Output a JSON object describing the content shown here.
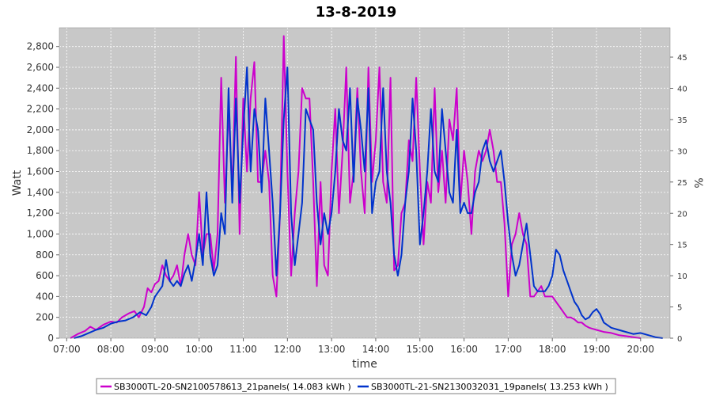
{
  "chart_data": {
    "type": "line",
    "title": "13-8-2019",
    "xlabel": "time",
    "ylabel": "Watt",
    "y2label": "%",
    "x_ticks": [
      "07:00",
      "08:00",
      "09:00",
      "10:00",
      "11:00",
      "12:00",
      "13:00",
      "14:00",
      "15:00",
      "16:00",
      "17:00",
      "18:00",
      "19:00",
      "20:00"
    ],
    "x_range": [
      "06:50",
      "20:40"
    ],
    "ylim": [
      0,
      2980
    ],
    "y_ticks": [
      "0",
      "200",
      "400",
      "600",
      "800",
      "1,000",
      "1,200",
      "1,400",
      "1,600",
      "1,800",
      "2,000",
      "2,200",
      "2,400",
      "2,600",
      "2,800"
    ],
    "y2lim": [
      0,
      49.7
    ],
    "y2_ticks": [
      "0",
      "5",
      "10",
      "15",
      "20",
      "25",
      "30",
      "35",
      "40",
      "45"
    ],
    "grid": true,
    "legend_position": "bottom",
    "colors": {
      "plot_background": "#c8c8c8",
      "grid": "#ffffff"
    },
    "series": [
      {
        "name": "SB3000TL-20-SN2100578613_21panels( 14.083 kWh )",
        "color": "#cc00cc",
        "points": [
          [
            "07:05",
            0
          ],
          [
            "07:15",
            40
          ],
          [
            "07:25",
            70
          ],
          [
            "07:32",
            110
          ],
          [
            "07:40",
            80
          ],
          [
            "07:50",
            130
          ],
          [
            "08:00",
            160
          ],
          [
            "08:08",
            150
          ],
          [
            "08:15",
            200
          ],
          [
            "08:25",
            240
          ],
          [
            "08:32",
            260
          ],
          [
            "08:38",
            200
          ],
          [
            "08:45",
            300
          ],
          [
            "08:50",
            480
          ],
          [
            "08:55",
            440
          ],
          [
            "09:00",
            520
          ],
          [
            "09:05",
            550
          ],
          [
            "09:10",
            700
          ],
          [
            "09:15",
            600
          ],
          [
            "09:20",
            550
          ],
          [
            "09:25",
            600
          ],
          [
            "09:30",
            700
          ],
          [
            "09:35",
            500
          ],
          [
            "09:40",
            800
          ],
          [
            "09:45",
            1000
          ],
          [
            "09:50",
            800
          ],
          [
            "09:55",
            700
          ],
          [
            "10:00",
            1400
          ],
          [
            "10:05",
            800
          ],
          [
            "10:10",
            1000
          ],
          [
            "10:15",
            1000
          ],
          [
            "10:20",
            650
          ],
          [
            "10:25",
            1000
          ],
          [
            "10:30",
            2500
          ],
          [
            "10:35",
            1300
          ],
          [
            "10:40",
            2200
          ],
          [
            "10:45",
            1400
          ],
          [
            "10:50",
            2700
          ],
          [
            "10:55",
            1000
          ],
          [
            "11:00",
            2300
          ],
          [
            "11:05",
            1600
          ],
          [
            "11:10",
            2300
          ],
          [
            "11:15",
            2650
          ],
          [
            "11:20",
            1500
          ],
          [
            "11:25",
            1500
          ],
          [
            "11:30",
            1800
          ],
          [
            "11:35",
            1500
          ],
          [
            "11:40",
            600
          ],
          [
            "11:45",
            400
          ],
          [
            "11:50",
            1200
          ],
          [
            "11:55",
            2900
          ],
          [
            "12:00",
            1600
          ],
          [
            "12:05",
            600
          ],
          [
            "12:10",
            1200
          ],
          [
            "12:15",
            1600
          ],
          [
            "12:20",
            2400
          ],
          [
            "12:25",
            2300
          ],
          [
            "12:30",
            2300
          ],
          [
            "12:35",
            1500
          ],
          [
            "12:40",
            500
          ],
          [
            "12:45",
            1500
          ],
          [
            "12:50",
            700
          ],
          [
            "12:55",
            600
          ],
          [
            "13:00",
            1600
          ],
          [
            "13:05",
            2200
          ],
          [
            "13:10",
            1200
          ],
          [
            "13:15",
            1800
          ],
          [
            "13:20",
            2600
          ],
          [
            "13:25",
            1300
          ],
          [
            "13:30",
            1600
          ],
          [
            "13:35",
            2400
          ],
          [
            "13:40",
            1600
          ],
          [
            "13:45",
            1200
          ],
          [
            "13:50",
            2600
          ],
          [
            "13:55",
            1500
          ],
          [
            "14:00",
            1900
          ],
          [
            "14:05",
            2600
          ],
          [
            "14:10",
            1500
          ],
          [
            "14:15",
            1300
          ],
          [
            "14:20",
            2500
          ],
          [
            "14:25",
            650
          ],
          [
            "14:30",
            700
          ],
          [
            "14:35",
            1200
          ],
          [
            "14:40",
            1300
          ],
          [
            "14:45",
            1900
          ],
          [
            "14:50",
            1700
          ],
          [
            "14:55",
            2500
          ],
          [
            "15:00",
            1600
          ],
          [
            "15:05",
            900
          ],
          [
            "15:10",
            1500
          ],
          [
            "15:15",
            1300
          ],
          [
            "15:20",
            2400
          ],
          [
            "15:25",
            1400
          ],
          [
            "15:30",
            1800
          ],
          [
            "15:35",
            1300
          ],
          [
            "15:40",
            2100
          ],
          [
            "15:45",
            1900
          ],
          [
            "15:50",
            2400
          ],
          [
            "15:55",
            1300
          ],
          [
            "16:00",
            1800
          ],
          [
            "16:05",
            1500
          ],
          [
            "16:10",
            1000
          ],
          [
            "16:15",
            1600
          ],
          [
            "16:20",
            1800
          ],
          [
            "16:25",
            1700
          ],
          [
            "16:30",
            1800
          ],
          [
            "16:35",
            2000
          ],
          [
            "16:40",
            1800
          ],
          [
            "16:45",
            1500
          ],
          [
            "16:50",
            1500
          ],
          [
            "16:55",
            1100
          ],
          [
            "17:00",
            400
          ],
          [
            "17:05",
            900
          ],
          [
            "17:10",
            1000
          ],
          [
            "17:15",
            1200
          ],
          [
            "17:20",
            1000
          ],
          [
            "17:25",
            900
          ],
          [
            "17:30",
            400
          ],
          [
            "17:35",
            400
          ],
          [
            "17:40",
            450
          ],
          [
            "17:45",
            500
          ],
          [
            "17:50",
            400
          ],
          [
            "17:55",
            400
          ],
          [
            "18:00",
            400
          ],
          [
            "18:05",
            350
          ],
          [
            "18:10",
            300
          ],
          [
            "18:15",
            250
          ],
          [
            "18:20",
            200
          ],
          [
            "18:25",
            200
          ],
          [
            "18:30",
            180
          ],
          [
            "18:35",
            150
          ],
          [
            "18:40",
            150
          ],
          [
            "18:45",
            120
          ],
          [
            "18:50",
            100
          ],
          [
            "18:55",
            90
          ],
          [
            "19:00",
            80
          ],
          [
            "19:10",
            60
          ],
          [
            "19:20",
            50
          ],
          [
            "19:30",
            30
          ],
          [
            "19:40",
            20
          ],
          [
            "19:50",
            10
          ],
          [
            "20:00",
            0
          ]
        ]
      },
      {
        "name": "SB3000TL-21-SN2130032031_19panels( 13.253 kWh )",
        "color": "#0033cc",
        "points": [
          [
            "07:10",
            0
          ],
          [
            "07:20",
            20
          ],
          [
            "07:30",
            50
          ],
          [
            "07:40",
            80
          ],
          [
            "07:50",
            100
          ],
          [
            "08:00",
            140
          ],
          [
            "08:10",
            160
          ],
          [
            "08:20",
            170
          ],
          [
            "08:30",
            200
          ],
          [
            "08:40",
            250
          ],
          [
            "08:48",
            220
          ],
          [
            "08:55",
            300
          ],
          [
            "09:00",
            400
          ],
          [
            "09:05",
            450
          ],
          [
            "09:10",
            500
          ],
          [
            "09:15",
            750
          ],
          [
            "09:20",
            550
          ],
          [
            "09:25",
            500
          ],
          [
            "09:30",
            550
          ],
          [
            "09:35",
            500
          ],
          [
            "09:40",
            620
          ],
          [
            "09:45",
            700
          ],
          [
            "09:50",
            550
          ],
          [
            "09:55",
            750
          ],
          [
            "10:00",
            1000
          ],
          [
            "10:05",
            700
          ],
          [
            "10:10",
            1400
          ],
          [
            "10:15",
            800
          ],
          [
            "10:20",
            600
          ],
          [
            "10:25",
            700
          ],
          [
            "10:30",
            1200
          ],
          [
            "10:35",
            1000
          ],
          [
            "10:40",
            2400
          ],
          [
            "10:45",
            1300
          ],
          [
            "10:50",
            2300
          ],
          [
            "10:55",
            1300
          ],
          [
            "11:00",
            2000
          ],
          [
            "11:05",
            2600
          ],
          [
            "11:10",
            1600
          ],
          [
            "11:15",
            2200
          ],
          [
            "11:20",
            2000
          ],
          [
            "11:25",
            1400
          ],
          [
            "11:30",
            2300
          ],
          [
            "11:35",
            1800
          ],
          [
            "11:40",
            1300
          ],
          [
            "11:45",
            600
          ],
          [
            "11:50",
            1200
          ],
          [
            "11:55",
            2100
          ],
          [
            "12:00",
            2600
          ],
          [
            "12:05",
            1200
          ],
          [
            "12:10",
            700
          ],
          [
            "12:15",
            1000
          ],
          [
            "12:20",
            1300
          ],
          [
            "12:25",
            2200
          ],
          [
            "12:30",
            2100
          ],
          [
            "12:35",
            2000
          ],
          [
            "12:40",
            1300
          ],
          [
            "12:45",
            900
          ],
          [
            "12:50",
            1200
          ],
          [
            "12:55",
            1000
          ],
          [
            "13:00",
            1200
          ],
          [
            "13:05",
            1600
          ],
          [
            "13:10",
            2200
          ],
          [
            "13:15",
            1900
          ],
          [
            "13:20",
            1800
          ],
          [
            "13:25",
            2400
          ],
          [
            "13:30",
            1500
          ],
          [
            "13:35",
            2300
          ],
          [
            "13:40",
            2000
          ],
          [
            "13:45",
            1600
          ],
          [
            "13:50",
            2400
          ],
          [
            "13:55",
            1200
          ],
          [
            "14:00",
            1500
          ],
          [
            "14:05",
            1600
          ],
          [
            "14:10",
            2400
          ],
          [
            "14:15",
            1600
          ],
          [
            "14:20",
            1300
          ],
          [
            "14:25",
            800
          ],
          [
            "14:30",
            600
          ],
          [
            "14:35",
            800
          ],
          [
            "14:40",
            1300
          ],
          [
            "14:45",
            1600
          ],
          [
            "14:50",
            2300
          ],
          [
            "14:55",
            1800
          ],
          [
            "15:00",
            900
          ],
          [
            "15:05",
            1200
          ],
          [
            "15:10",
            1600
          ],
          [
            "15:15",
            2200
          ],
          [
            "15:20",
            1600
          ],
          [
            "15:25",
            1500
          ],
          [
            "15:30",
            2200
          ],
          [
            "15:35",
            1800
          ],
          [
            "15:40",
            1400
          ],
          [
            "15:45",
            1300
          ],
          [
            "15:50",
            2000
          ],
          [
            "15:55",
            1200
          ],
          [
            "16:00",
            1300
          ],
          [
            "16:05",
            1200
          ],
          [
            "16:10",
            1200
          ],
          [
            "16:15",
            1400
          ],
          [
            "16:20",
            1500
          ],
          [
            "16:25",
            1800
          ],
          [
            "16:30",
            1900
          ],
          [
            "16:35",
            1700
          ],
          [
            "16:40",
            1600
          ],
          [
            "16:45",
            1700
          ],
          [
            "16:50",
            1800
          ],
          [
            "16:55",
            1500
          ],
          [
            "17:00",
            1100
          ],
          [
            "17:05",
            800
          ],
          [
            "17:10",
            600
          ],
          [
            "17:15",
            700
          ],
          [
            "17:20",
            900
          ],
          [
            "17:25",
            1100
          ],
          [
            "17:30",
            800
          ],
          [
            "17:35",
            500
          ],
          [
            "17:40",
            450
          ],
          [
            "17:45",
            450
          ],
          [
            "17:50",
            450
          ],
          [
            "17:55",
            500
          ],
          [
            "18:00",
            600
          ],
          [
            "18:05",
            850
          ],
          [
            "18:10",
            800
          ],
          [
            "18:15",
            650
          ],
          [
            "18:20",
            550
          ],
          [
            "18:25",
            450
          ],
          [
            "18:30",
            350
          ],
          [
            "18:35",
            300
          ],
          [
            "18:40",
            220
          ],
          [
            "18:45",
            180
          ],
          [
            "18:50",
            200
          ],
          [
            "18:55",
            250
          ],
          [
            "19:00",
            280
          ],
          [
            "19:05",
            230
          ],
          [
            "19:10",
            150
          ],
          [
            "19:20",
            100
          ],
          [
            "19:30",
            80
          ],
          [
            "19:40",
            60
          ],
          [
            "19:50",
            40
          ],
          [
            "20:00",
            50
          ],
          [
            "20:10",
            30
          ],
          [
            "20:20",
            10
          ],
          [
            "20:30",
            0
          ]
        ]
      }
    ]
  }
}
